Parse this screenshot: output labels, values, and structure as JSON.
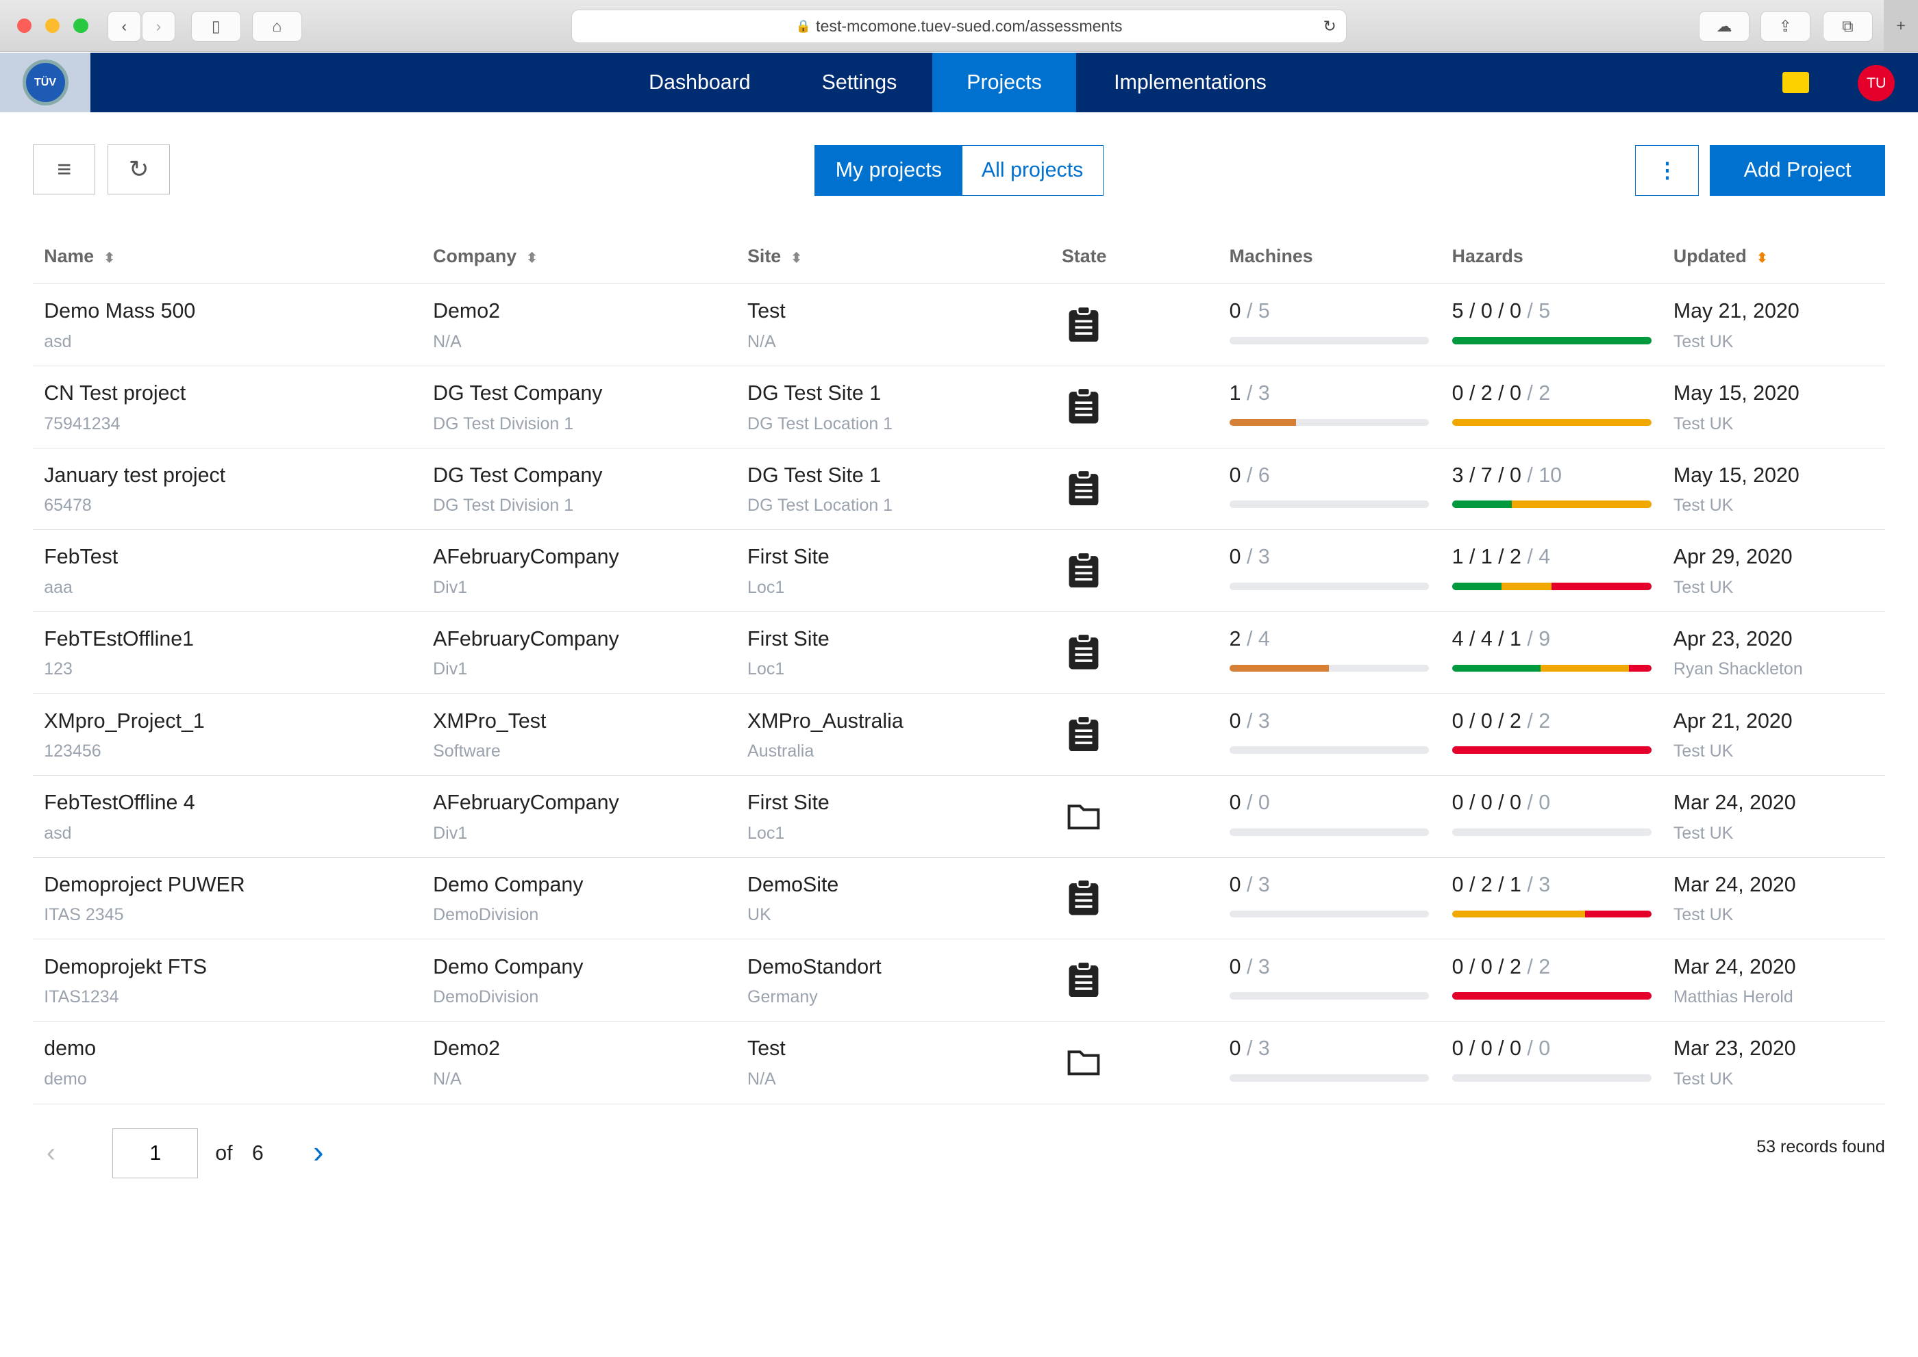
{
  "browser": {
    "url": "test-mcomone.tuev-sued.com/assessments"
  },
  "nav": {
    "logo": "TÜV SÜD",
    "items": [
      "Dashboard",
      "Settings",
      "Projects",
      "Implementations"
    ],
    "active": "Projects",
    "avatar": "TU"
  },
  "toolbar": {
    "my_projects": "My projects",
    "all_projects": "All projects",
    "add_project": "Add Project"
  },
  "colors": {
    "nav": "#002d72",
    "accent": "#0071ce",
    "green": "#00993e",
    "amber": "#f0a800",
    "red": "#e4002b",
    "machine": "#d67f37"
  },
  "table": {
    "headers": [
      "Name",
      "Company",
      "Site",
      "State",
      "Machines",
      "Hazards",
      "Updated"
    ],
    "rows": [
      {
        "name": "Demo Mass 500",
        "id": "asd",
        "company": "Demo2",
        "division": "N/A",
        "site": "Test",
        "location": "N/A",
        "state": "clipboard-icon",
        "machines_done": 0,
        "machines_total": 5,
        "hazards": [
          5,
          0,
          0
        ],
        "hazards_total": 5,
        "updated": "May 21, 2020",
        "user": "Test UK"
      },
      {
        "name": "CN Test project",
        "id": "75941234",
        "company": "DG Test Company",
        "division": "DG Test Division 1",
        "site": "DG Test Site 1",
        "location": "DG Test Location 1",
        "state": "clipboard-icon",
        "machines_done": 1,
        "machines_total": 3,
        "hazards": [
          0,
          2,
          0
        ],
        "hazards_total": 2,
        "updated": "May 15, 2020",
        "user": "Test UK"
      },
      {
        "name": "January test project",
        "id": "65478",
        "company": "DG Test Company",
        "division": "DG Test Division 1",
        "site": "DG Test Site 1",
        "location": "DG Test Location 1",
        "state": "clipboard-icon",
        "machines_done": 0,
        "machines_total": 6,
        "hazards": [
          3,
          7,
          0
        ],
        "hazards_total": 10,
        "updated": "May 15, 2020",
        "user": "Test UK"
      },
      {
        "name": "FebTest",
        "id": "aaa",
        "company": "AFebruaryCompany",
        "division": "Div1",
        "site": "First Site",
        "location": "Loc1",
        "state": "clipboard-icon",
        "machines_done": 0,
        "machines_total": 3,
        "hazards": [
          1,
          1,
          2
        ],
        "hazards_total": 4,
        "updated": "Apr 29, 2020",
        "user": "Test UK"
      },
      {
        "name": "FebTEstOffline1",
        "id": "123",
        "company": "AFebruaryCompany",
        "division": "Div1",
        "site": "First Site",
        "location": "Loc1",
        "state": "clipboard-icon",
        "machines_done": 2,
        "machines_total": 4,
        "hazards": [
          4,
          4,
          1
        ],
        "hazards_total": 9,
        "updated": "Apr 23, 2020",
        "user": "Ryan Shackleton"
      },
      {
        "name": "XMpro_Project_1",
        "id": "123456",
        "company": "XMPro_Test",
        "division": "Software",
        "site": "XMPro_Australia",
        "location": "Australia",
        "state": "clipboard-icon",
        "machines_done": 0,
        "machines_total": 3,
        "hazards": [
          0,
          0,
          2
        ],
        "hazards_total": 2,
        "updated": "Apr 21, 2020",
        "user": "Test UK"
      },
      {
        "name": "FebTestOffline 4",
        "id": "asd",
        "company": "AFebruaryCompany",
        "division": "Div1",
        "site": "First Site",
        "location": "Loc1",
        "state": "folder-icon",
        "machines_done": 0,
        "machines_total": 0,
        "hazards": [
          0,
          0,
          0
        ],
        "hazards_total": 0,
        "updated": "Mar 24, 2020",
        "user": "Test UK"
      },
      {
        "name": "Demoproject PUWER",
        "id": "ITAS 2345",
        "company": "Demo Company",
        "division": "DemoDivision",
        "site": "DemoSite",
        "location": "UK",
        "state": "clipboard-icon",
        "machines_done": 0,
        "machines_total": 3,
        "hazards": [
          0,
          2,
          1
        ],
        "hazards_total": 3,
        "updated": "Mar 24, 2020",
        "user": "Test UK"
      },
      {
        "name": "Demoprojekt FTS",
        "id": "ITAS1234",
        "company": "Demo Company",
        "division": "DemoDivision",
        "site": "DemoStandort",
        "location": "Germany",
        "state": "clipboard-icon",
        "machines_done": 0,
        "machines_total": 3,
        "hazards": [
          0,
          0,
          2
        ],
        "hazards_total": 2,
        "updated": "Mar 24, 2020",
        "user": "Matthias Herold"
      },
      {
        "name": "demo",
        "id": "demo",
        "company": "Demo2",
        "division": "N/A",
        "site": "Test",
        "location": "N/A",
        "state": "folder-icon",
        "machines_done": 0,
        "machines_total": 3,
        "hazards": [
          0,
          0,
          0
        ],
        "hazards_total": 0,
        "updated": "Mar 23, 2020",
        "user": "Test UK"
      }
    ]
  },
  "pagination": {
    "page": "1",
    "of": "of",
    "total_pages": "6",
    "records": "53 records found"
  }
}
